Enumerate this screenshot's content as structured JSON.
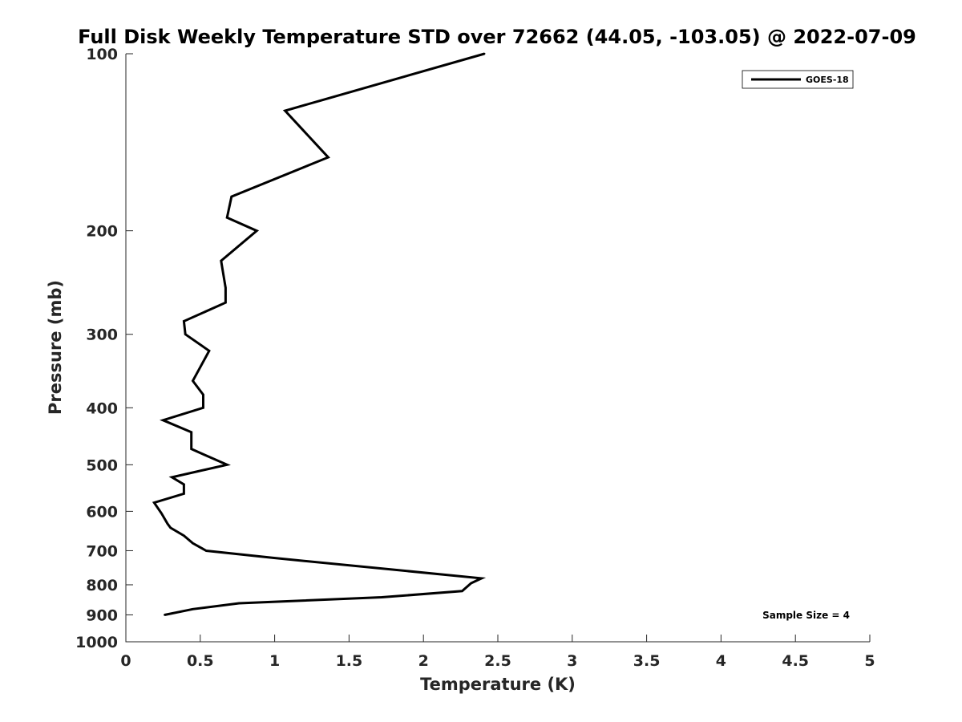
{
  "chart_data": {
    "type": "line",
    "title": "Full Disk Weekly Temperature STD over 72662 (44.05, -103.05) @ 2022-07-09",
    "xlabel": "Temperature (K)",
    "ylabel": "Pressure (mb)",
    "xlim": [
      0,
      5
    ],
    "ylim": [
      100,
      1000
    ],
    "y_scale": "log",
    "y_reversed": true,
    "x_ticks": [
      "0",
      "0.5",
      "1",
      "1.5",
      "2",
      "2.5",
      "3",
      "3.5",
      "4",
      "4.5",
      "5"
    ],
    "y_ticks": [
      "100",
      "200",
      "300",
      "400",
      "500",
      "600",
      "700",
      "800",
      "900",
      "1000"
    ],
    "grid": false,
    "legend": {
      "position": "top-right",
      "entries": [
        "GOES-18"
      ]
    },
    "annotation": "Sample Size = 4",
    "series": [
      {
        "name": "GOES-18",
        "color": "#000000",
        "points": [
          [
            2.41,
            100
          ],
          [
            1.07,
            125
          ],
          [
            1.36,
            150
          ],
          [
            0.71,
            175
          ],
          [
            0.68,
            190
          ],
          [
            0.88,
            200
          ],
          [
            0.64,
            225
          ],
          [
            0.67,
            250
          ],
          [
            0.67,
            265
          ],
          [
            0.39,
            285
          ],
          [
            0.4,
            300
          ],
          [
            0.56,
            320
          ],
          [
            0.49,
            345
          ],
          [
            0.45,
            360
          ],
          [
            0.52,
            380
          ],
          [
            0.52,
            400
          ],
          [
            0.25,
            420
          ],
          [
            0.44,
            440
          ],
          [
            0.44,
            470
          ],
          [
            0.52,
            480
          ],
          [
            0.68,
            500
          ],
          [
            0.31,
            525
          ],
          [
            0.39,
            540
          ],
          [
            0.39,
            560
          ],
          [
            0.19,
            580
          ],
          [
            0.24,
            605
          ],
          [
            0.28,
            630
          ],
          [
            0.3,
            640
          ],
          [
            0.39,
            660
          ],
          [
            0.45,
            680
          ],
          [
            0.54,
            700
          ],
          [
            0.99,
            720
          ],
          [
            2.39,
            780
          ],
          [
            2.32,
            795
          ],
          [
            2.26,
            820
          ],
          [
            1.72,
            840
          ],
          [
            0.76,
            860
          ],
          [
            0.45,
            880
          ],
          [
            0.26,
            900
          ]
        ]
      }
    ]
  }
}
